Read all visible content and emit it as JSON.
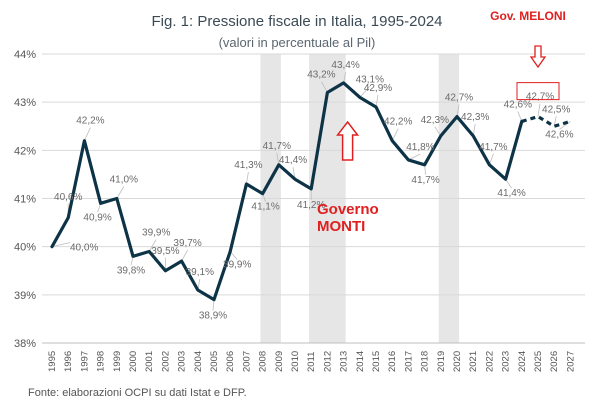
{
  "chart_data": {
    "type": "line",
    "title": "Fig. 1: Pressione fiscale in Italia, 1995-2024",
    "subtitle": "(valori in percentuale al Pil)",
    "source": "Fonte: elaborazioni OCPI su dati Istat e DFP.",
    "x": [
      1995,
      1996,
      1997,
      1998,
      1999,
      2000,
      2001,
      2002,
      2003,
      2004,
      2005,
      2006,
      2007,
      2008,
      2009,
      2010,
      2011,
      2012,
      2013,
      2014,
      2015,
      2016,
      2017,
      2018,
      2019,
      2020,
      2021,
      2022,
      2023,
      2024,
      2025,
      2026,
      2027
    ],
    "x_tick_labels": [
      "1995",
      "1996",
      "1997",
      "1998",
      "1999",
      "2000",
      "2001",
      "2002",
      "2003",
      "2004",
      "2005",
      "2006",
      "2007",
      "2008",
      "2009",
      "2010",
      "2011",
      "2012",
      "2013",
      "2014",
      "2015",
      "2016",
      "2017",
      "2018",
      "2019",
      "2020",
      "2021",
      "2022",
      "2023",
      "2024",
      "2025",
      "2026",
      "2027"
    ],
    "series": [
      {
        "values": [
          40.0,
          40.6,
          42.2,
          40.9,
          41.0,
          39.8,
          39.9,
          39.5,
          39.7,
          39.1,
          38.9,
          39.9,
          41.3,
          41.1,
          41.7,
          41.4,
          41.2,
          43.2,
          43.4,
          43.1,
          42.9,
          42.2,
          41.8,
          41.7,
          42.3,
          42.7,
          42.3,
          41.7,
          41.4,
          42.6,
          42.7,
          42.5,
          42.6
        ],
        "labels": [
          "40,0%",
          "40,6%",
          "42,2%",
          "40,9%",
          "41,0%",
          "39,8%",
          "39,9%",
          "39,5%",
          "39,7%",
          "39,1%",
          "38,9%",
          "39,9%",
          "41,3%",
          "41,1%",
          "41,7%",
          "41,4%",
          "41,2%",
          "43,2%",
          "43,4%",
          "43,1%",
          "42,9%",
          "42,2%",
          "41,8%",
          "41,7%",
          "42,3%",
          "42,7%",
          "42,3%",
          "41,7%",
          "41,4%",
          "42,6%",
          "42,7%",
          "42,5%",
          "42,6%"
        ],
        "color": "#0d3347",
        "forecast_from": 2024
      }
    ],
    "y_tick_labels": [
      "38%",
      "39%",
      "40%",
      "41%",
      "42%",
      "43%",
      "44%"
    ],
    "ylim": [
      38,
      44
    ],
    "yticks": [
      38,
      39,
      40,
      41,
      42,
      43,
      44
    ],
    "shaded_periods": [
      [
        2008,
        2009
      ],
      [
        2011,
        2013
      ],
      [
        2019,
        2020
      ]
    ],
    "shade_color": "#e6e6e6",
    "grid": "horizontal",
    "annotations": {
      "meloni": {
        "text": "Gov. MELONI",
        "year": 2025,
        "color": "#e02020"
      },
      "monti": {
        "line1": "Governo",
        "line2": "MONTI",
        "year": 2013,
        "color": "#e02020"
      }
    }
  }
}
